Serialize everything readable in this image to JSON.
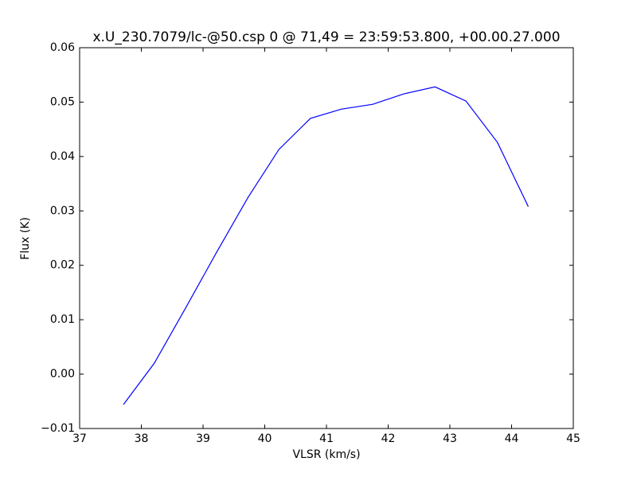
{
  "chart_data": {
    "type": "line",
    "title": "x.U_230.7079/lc-@50.csp 0 @ 71,49 = 23:59:53.800, +00.00.27.000",
    "x_label": "VLSR (km/s)",
    "y_label": "Flux (K)",
    "x": [
      37.71,
      38.21,
      38.72,
      39.22,
      39.73,
      40.23,
      40.74,
      41.24,
      41.75,
      42.25,
      42.76,
      43.26,
      43.77,
      44.27
    ],
    "series": [
      {
        "color": "#0000ff",
        "values": [
          -0.0056,
          0.002,
          0.0122,
          0.0224,
          0.0325,
          0.0413,
          0.047,
          0.0487,
          0.0496,
          0.0515,
          0.0528,
          0.0502,
          0.0426,
          0.0308
        ]
      }
    ],
    "xlim": [
      37,
      45
    ],
    "xticks": [
      37,
      38,
      39,
      40,
      41,
      42,
      43,
      44,
      45
    ],
    "ylim": [
      -0.01,
      0.06
    ],
    "yticks": [
      {
        "value": -0.01,
        "label": "−0.01"
      },
      {
        "value": 0,
        "label": "0.00"
      },
      {
        "value": 0.01,
        "label": "0.01"
      },
      {
        "value": 0.02,
        "label": "0.02"
      },
      {
        "value": 0.03,
        "label": "0.03"
      },
      {
        "value": 0.04,
        "label": "0.04"
      },
      {
        "value": 0.05,
        "label": "0.05"
      },
      {
        "value": 0.06,
        "label": "0.06"
      }
    ],
    "grid": false
  }
}
